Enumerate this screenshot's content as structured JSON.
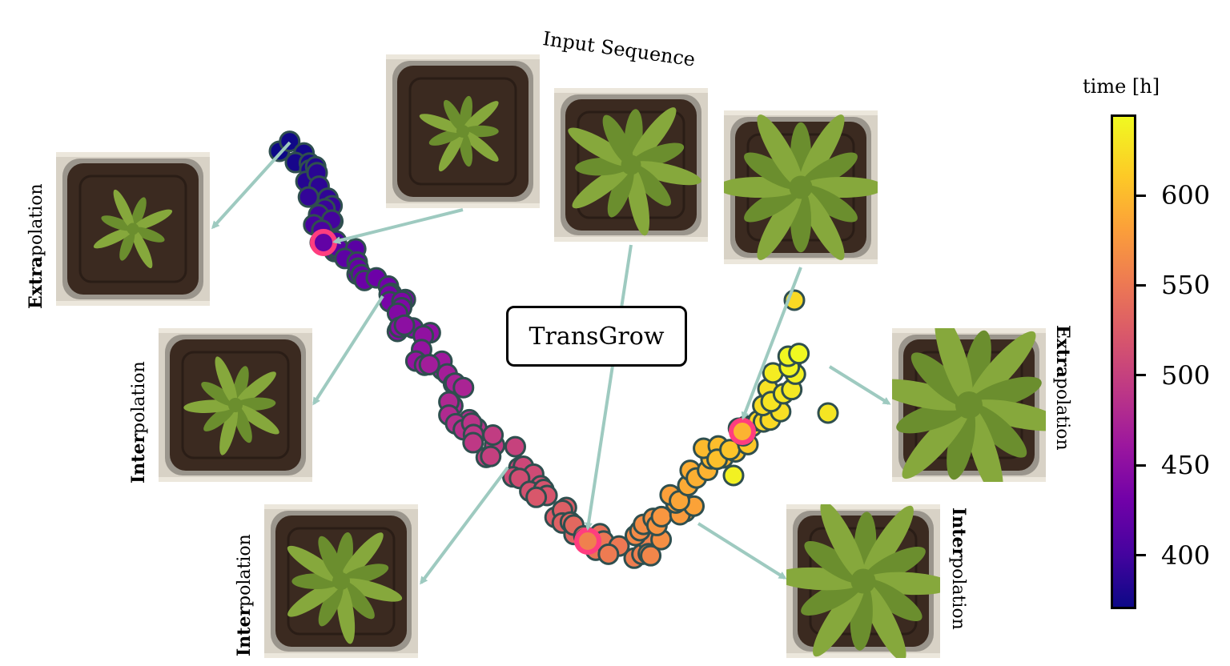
{
  "figure": {
    "input_label": "Input Sequence",
    "center_label": "TransGrow",
    "labels": [
      {
        "bold": "Extra",
        "rest": "polation"
      },
      {
        "bold": "Inter",
        "rest": "polation"
      },
      {
        "bold": "Inter",
        "rest": "polation"
      },
      {
        "bold": "Extra",
        "rest": "polation"
      },
      {
        "bold": "Inter",
        "rest": "polation"
      }
    ],
    "colorbar": {
      "title": "time [h]",
      "min": 370,
      "max": 645,
      "ticks": [
        "400",
        "450",
        "500",
        "550",
        "600"
      ],
      "tick_values": [
        400,
        450,
        500,
        550,
        600
      ]
    }
  },
  "colors": {
    "arrow": "#9ecac0",
    "marker_edge": "#2f4f4f",
    "highlight_ring": "#ff3d7f",
    "soil": "#3b2a20",
    "pot_frame": "#c8c2b6",
    "leaf": "#86a83c",
    "leaf_dark": "#6b8e2e"
  }
}
